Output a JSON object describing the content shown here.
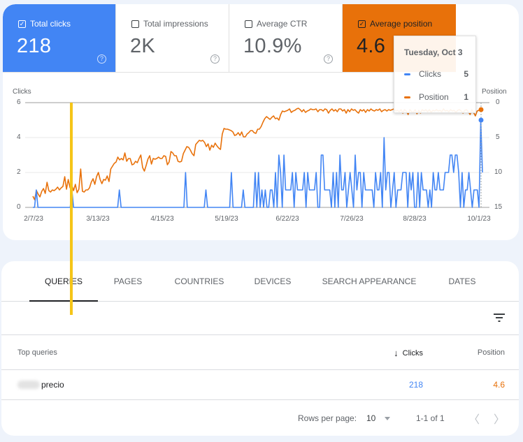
{
  "metrics": [
    {
      "label": "Total clicks",
      "value": "218",
      "checked": true,
      "bg": "#4285f4",
      "fg": "#ffffff"
    },
    {
      "label": "Total impressions",
      "value": "2K",
      "checked": false,
      "bg": "#ffffff",
      "fg": "#5f6368"
    },
    {
      "label": "Average CTR",
      "value": "10.9%",
      "checked": false,
      "bg": "#ffffff",
      "fg": "#5f6368"
    },
    {
      "label": "Average position",
      "value": "4.6",
      "checked": true,
      "bg": "#e8710a",
      "fg": "#202124"
    }
  ],
  "icons": {
    "checked": "✓",
    "help": "?",
    "sort_down": "↓",
    "prev": "〈",
    "next": "〉"
  },
  "tooltip": {
    "date": "Tuesday, Oct 3",
    "rows": [
      {
        "label": "Clicks",
        "value": "5",
        "color": "#4285f4"
      },
      {
        "label": "Position",
        "value": "1",
        "color": "#e8710a"
      }
    ]
  },
  "chart_data": {
    "type": "line",
    "title": "",
    "xlabel": "",
    "ylabel": "Clicks",
    "y2label": "Position",
    "ylim": [
      0,
      6
    ],
    "y2lim": [
      0,
      15
    ],
    "y2_inverted": true,
    "yticks": [
      "0",
      "2",
      "4",
      "6"
    ],
    "y2ticks": [
      "0",
      "5",
      "10",
      "15"
    ],
    "xticks": [
      "2/7/23",
      "3/13/23",
      "4/15/23",
      "5/19/23",
      "6/22/23",
      "7/26/23",
      "8/28/23",
      "10/1/23"
    ],
    "grid": true,
    "x_range": [
      "2/7/23",
      "10/3/23"
    ],
    "series": [
      {
        "name": "Clicks",
        "color": "#4285f4",
        "axis": "left",
        "values": [
          0,
          0,
          1,
          0,
          0,
          0,
          0,
          0,
          0,
          0,
          0,
          0,
          0,
          0,
          0,
          0,
          0,
          0,
          0,
          0,
          0,
          0,
          0,
          1,
          0,
          0,
          0,
          0,
          0,
          0,
          0,
          0,
          0,
          0,
          0,
          0,
          0,
          0,
          0,
          0,
          0,
          0,
          0,
          0,
          0,
          0,
          0,
          0,
          0,
          0,
          0,
          1,
          0,
          0,
          0,
          0,
          0,
          0,
          0,
          0,
          0,
          0,
          0,
          0,
          0,
          0,
          0,
          0,
          0,
          0,
          0,
          0,
          0,
          0,
          0,
          0,
          0,
          0,
          0,
          0,
          0,
          0,
          0,
          0,
          0,
          0,
          0,
          0,
          0,
          0,
          2,
          0,
          0,
          0,
          0,
          0,
          0,
          0,
          0,
          0,
          0,
          0,
          1,
          0,
          0,
          0,
          0,
          0,
          0,
          0,
          0,
          0,
          0,
          0,
          0,
          0,
          0,
          2,
          0,
          0,
          0,
          0,
          0,
          0,
          1,
          0,
          0,
          0,
          0,
          0,
          0,
          2,
          0,
          2,
          0,
          1,
          0,
          1,
          0,
          0,
          1,
          1,
          0,
          2,
          0,
          3,
          2,
          0,
          3,
          1,
          1,
          1,
          1,
          2,
          0,
          2,
          1,
          1,
          1,
          1,
          2,
          0,
          2,
          1,
          1,
          1,
          1,
          2,
          0,
          0,
          3,
          3,
          1,
          1,
          1,
          1,
          0,
          2,
          0,
          2,
          0,
          3,
          1,
          1,
          2,
          0,
          1,
          2,
          1,
          0,
          3,
          1,
          2,
          2,
          0,
          2,
          1,
          1,
          1,
          1,
          1,
          0,
          2,
          1,
          1,
          2,
          0,
          4,
          1,
          2,
          2,
          0,
          1,
          2,
          0,
          1,
          1,
          1,
          2,
          2,
          2,
          0,
          2,
          1,
          2,
          0,
          0,
          2,
          0,
          2,
          1,
          1,
          1,
          0,
          1,
          0,
          2,
          1,
          1,
          2,
          1,
          1,
          1,
          2,
          2,
          2,
          3,
          3,
          2,
          3,
          3,
          2,
          0,
          2,
          0,
          1,
          1,
          2,
          1,
          0,
          1,
          1,
          1,
          0,
          5,
          2
        ]
      },
      {
        "name": "Position",
        "color": "#e8710a",
        "axis": "right",
        "values": [
          13.4,
          13.9,
          12.6,
          13.1,
          13.5,
          12.7,
          12.3,
          13.0,
          11.4,
          12.6,
          12.8,
          12.5,
          12.6,
          12.4,
          12.1,
          12.5,
          12.2,
          12.0,
          10.6,
          12.4,
          11.0,
          12.2,
          11.8,
          12.6,
          11.7,
          12.9,
          12.4,
          9.5,
          12.7,
          12.8,
          12.5,
          12.5,
          12.2,
          11.4,
          10.9,
          11.7,
          10.6,
          10.0,
          11.0,
          11.6,
          11.0,
          11.1,
          10.5,
          11.3,
          9.5,
          9.1,
          8.7,
          8.5,
          7.8,
          8.2,
          8.0,
          8.2,
          7.2,
          8.4,
          8.0,
          8.0,
          8.9,
          8.8,
          8.4,
          8.6,
          8.0,
          7.5,
          9.3,
          9.8,
          9.0,
          8.1,
          7.6,
          8.8,
          8.0,
          8.1,
          8.0,
          7.8,
          8.0,
          8.0,
          7.6,
          7.7,
          8.9,
          8.5,
          7.0,
          7.2,
          7.6,
          7.6,
          8.4,
          8.5,
          8.4,
          7.3,
          6.8,
          6.3,
          6.4,
          6.8,
          7.3,
          7.6,
          6.0,
          5.7,
          5.4,
          5.5,
          5.4,
          5.7,
          6.3,
          5.9,
          6.8,
          6.1,
          6.4,
          5.8,
          6.2,
          6.5,
          6.7,
          4.5,
          3.7,
          3.8,
          3.8,
          3.9,
          4.0,
          4.2,
          4.7,
          4.6,
          4.3,
          4.7,
          4.2,
          4.9,
          4.9,
          4.5,
          4.3,
          4.0,
          4.0,
          4.3,
          4.4,
          3.8,
          3.8,
          3.4,
          2.8,
          2.3,
          2.0,
          2.2,
          2.4,
          2.1,
          1.9,
          2.3,
          2.2,
          2.5,
          1.7,
          1.2,
          1.3,
          1.2,
          1.1,
          0.9,
          1.4,
          1.2,
          1.1,
          0.9,
          0.8,
          1.0,
          1.3,
          1.0,
          1.4,
          1.2,
          1.1,
          0.9,
          1.0,
          1.0,
          0.9,
          1.3,
          1.0,
          1.0,
          1.2,
          0.9,
          1.0,
          1.5,
          1.1,
          0.9,
          1.2,
          1.0,
          1.3,
          0.9,
          0.9,
          1.2,
          1.0,
          1.5,
          1.0,
          1.3,
          0.9,
          1.1,
          1.0,
          1.3,
          1.5,
          1.0,
          1.2,
          1.0,
          1.4,
          1.0,
          1.2,
          0.9,
          1.1,
          1.2,
          1.0,
          1.1,
          0.9,
          1.3,
          1.1,
          1.0,
          1.2,
          1.0,
          1.1,
          1.0,
          0.9,
          1.2,
          1.1,
          1.3,
          1.0,
          1.5,
          1.0,
          1.2,
          1.7,
          1.0,
          1.3,
          1.4,
          1.0,
          1.6,
          1.1,
          1.5,
          1.0,
          1.2,
          1.0,
          1.3,
          1.0,
          1.4,
          1.1,
          1.2,
          1.0,
          1.2,
          1.1,
          1.3,
          0.9,
          1.2,
          1.1,
          1.3,
          1.0,
          1.2,
          1.1,
          1.4,
          1.1,
          1.0,
          1.2,
          1.5,
          1.1,
          1.0,
          1.3,
          1.7,
          1.0,
          1.4,
          1.9,
          1.2,
          1.1,
          1.0,
          1.0
        ]
      }
    ],
    "highlight": {
      "date": "Tuesday, Oct 3",
      "clicks": 5,
      "position": 1
    }
  },
  "table": {
    "tabs": [
      "Queries",
      "Pages",
      "Countries",
      "Devices",
      "Search appearance",
      "Dates"
    ],
    "active_tab": "Queries",
    "columns": [
      "Top queries",
      "Clicks",
      "Position"
    ],
    "sort_column": "Clicks",
    "rows": [
      {
        "query": "precio",
        "query_redacted_prefix": true,
        "clicks": "218",
        "position": "4.6"
      }
    ]
  },
  "pagination": {
    "rows_per_page_label": "Rows per page:",
    "rows_per_page": "10",
    "range": "1-1 of 1"
  }
}
